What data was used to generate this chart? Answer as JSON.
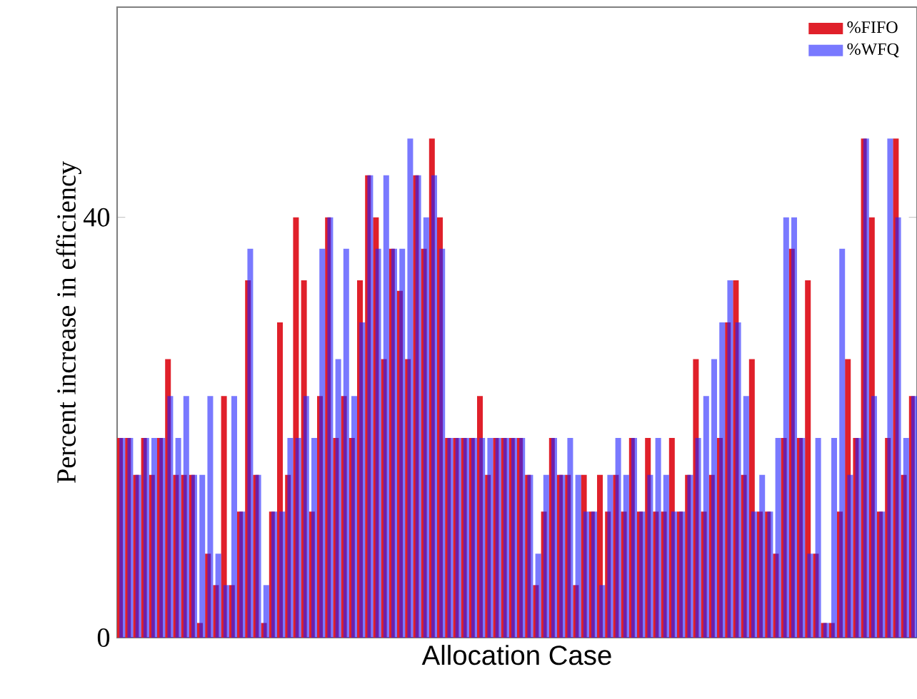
{
  "chart_data": {
    "type": "bar",
    "xlabel": "Allocation Case",
    "ylabel": "Percent increase in efficiency",
    "categories": [
      null,
      null,
      null,
      null,
      null,
      null,
      null,
      null,
      null,
      null,
      null,
      null,
      null,
      null,
      null,
      null,
      null,
      null,
      null,
      null,
      null,
      null,
      null,
      null,
      null,
      null,
      null,
      null,
      null,
      null,
      null,
      null,
      null,
      null,
      null,
      null,
      null,
      null,
      null,
      null,
      null,
      null,
      null,
      null,
      null,
      null,
      null,
      null,
      null,
      null,
      null,
      null,
      null,
      null,
      null,
      null,
      null,
      null,
      null,
      null,
      null,
      null,
      null,
      null,
      null,
      null,
      null,
      null,
      null,
      null,
      null,
      null,
      null,
      null,
      null,
      null,
      null,
      null,
      null,
      null,
      null,
      null,
      null,
      null,
      null,
      null,
      null,
      null,
      null,
      null,
      null,
      null,
      null,
      null,
      null,
      null,
      null,
      null,
      null,
      null
    ],
    "series": [
      {
        "name": "%FIFO",
        "color": "#e0202a",
        "values": [
          19,
          19,
          15.5,
          19,
          15.5,
          19,
          26.5,
          15.5,
          15.5,
          15.5,
          1.4,
          8,
          5,
          23,
          5,
          12,
          34,
          15.5,
          1.4,
          12,
          30,
          15.5,
          40,
          34,
          12,
          23,
          40,
          19,
          23,
          19,
          34,
          44,
          40,
          26.5,
          37,
          33,
          26.5,
          44,
          37,
          47.5,
          40,
          19,
          19,
          19,
          19,
          23,
          15.5,
          19,
          19,
          19,
          19,
          15.5,
          5,
          12,
          19,
          15.5,
          15.5,
          5,
          15.5,
          12,
          15.5,
          12,
          15.5,
          12,
          19,
          12,
          19,
          12,
          12,
          19,
          12,
          15.5,
          26.5,
          12,
          15.5,
          19,
          30,
          34,
          15.5,
          26.5,
          12,
          12,
          8,
          19,
          37,
          19,
          34,
          8,
          1.4,
          1.4,
          12,
          26.5,
          19,
          47.5,
          40,
          12,
          19,
          47.5,
          15.5,
          23
        ]
      },
      {
        "name": "%WFQ",
        "color": "#2020ff",
        "values": [
          19,
          19,
          15.5,
          19,
          19,
          19,
          23,
          19,
          23,
          15.5,
          15.5,
          23,
          8,
          5,
          23,
          12,
          37,
          15.5,
          5,
          12,
          12,
          19,
          19,
          23,
          19,
          37,
          40,
          26.5,
          37,
          23,
          30,
          44,
          37,
          44,
          37,
          37,
          47.5,
          44,
          40,
          44,
          37,
          19,
          19,
          19,
          19,
          19,
          19,
          19,
          19,
          19,
          19,
          15.5,
          8,
          15.5,
          19,
          15.5,
          19,
          15.5,
          12,
          12,
          5,
          15.5,
          19,
          15.5,
          19,
          12,
          15.5,
          19,
          15.5,
          12,
          12,
          15.5,
          19,
          23,
          26.5,
          30,
          34,
          30,
          23,
          12,
          15.5,
          12,
          19,
          40,
          40,
          19,
          8,
          19,
          1.4,
          19,
          37,
          15.5,
          19,
          47.5,
          23,
          12,
          47.5,
          40,
          19,
          23
        ]
      }
    ],
    "ylim": [
      0,
      60
    ],
    "yticks": [
      0,
      40
    ],
    "tick_labels": "y",
    "legend": "top right",
    "grid": false
  }
}
